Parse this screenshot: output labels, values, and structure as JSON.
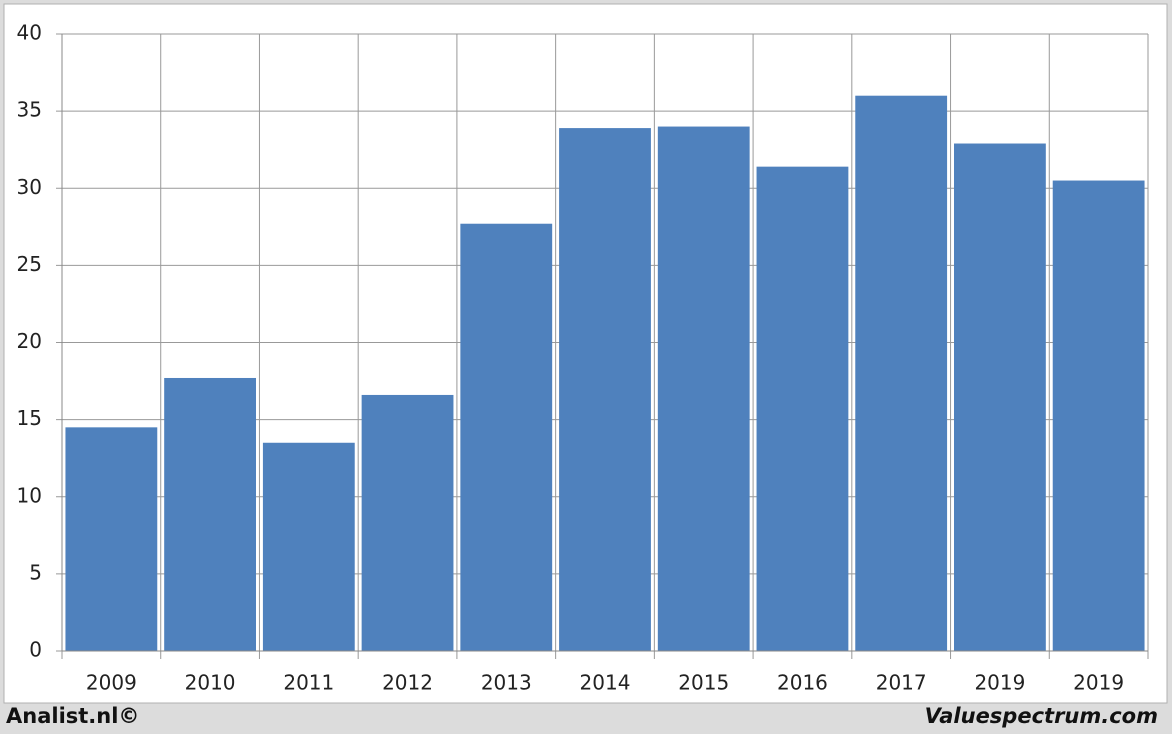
{
  "chart_data": {
    "type": "bar",
    "categories": [
      "2009",
      "2010",
      "2011",
      "2012",
      "2013",
      "2014",
      "2015",
      "2016",
      "2017",
      "2019",
      "2019"
    ],
    "values": [
      14.5,
      17.7,
      13.5,
      16.6,
      27.7,
      33.9,
      34.0,
      31.4,
      36.0,
      32.9,
      30.5
    ],
    "color": "#4f81bd",
    "ylim": [
      0,
      40
    ],
    "yticks": [
      0,
      5,
      10,
      15,
      20,
      25,
      30,
      35,
      40
    ],
    "grid": true,
    "footer_left": "Analist.nl©",
    "footer_right": "Valuespectrum.com"
  }
}
